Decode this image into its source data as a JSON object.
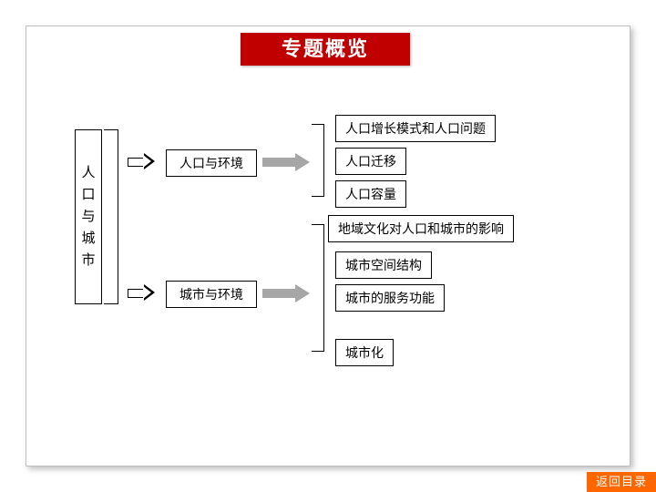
{
  "title": "专题概览",
  "title_bg": "#c00000",
  "title_color": "#ffffff",
  "solid_arrow_color": "#a6a6a6",
  "root": {
    "label": "人口与城市",
    "chars": [
      "人",
      "口",
      "与",
      "城",
      "市"
    ]
  },
  "branches": [
    {
      "label": "人口与环境",
      "leaves": [
        "人口增长模式和人口问题",
        "人口迁移",
        "人口容量"
      ]
    },
    {
      "label": "城市与环境",
      "leaves": [
        "地域文化对人口和城市的影响",
        "城市空间结构",
        "城市的服务功能",
        "城市化"
      ]
    }
  ],
  "home_button": {
    "label": "返回目录",
    "bg": "#ff6600"
  }
}
